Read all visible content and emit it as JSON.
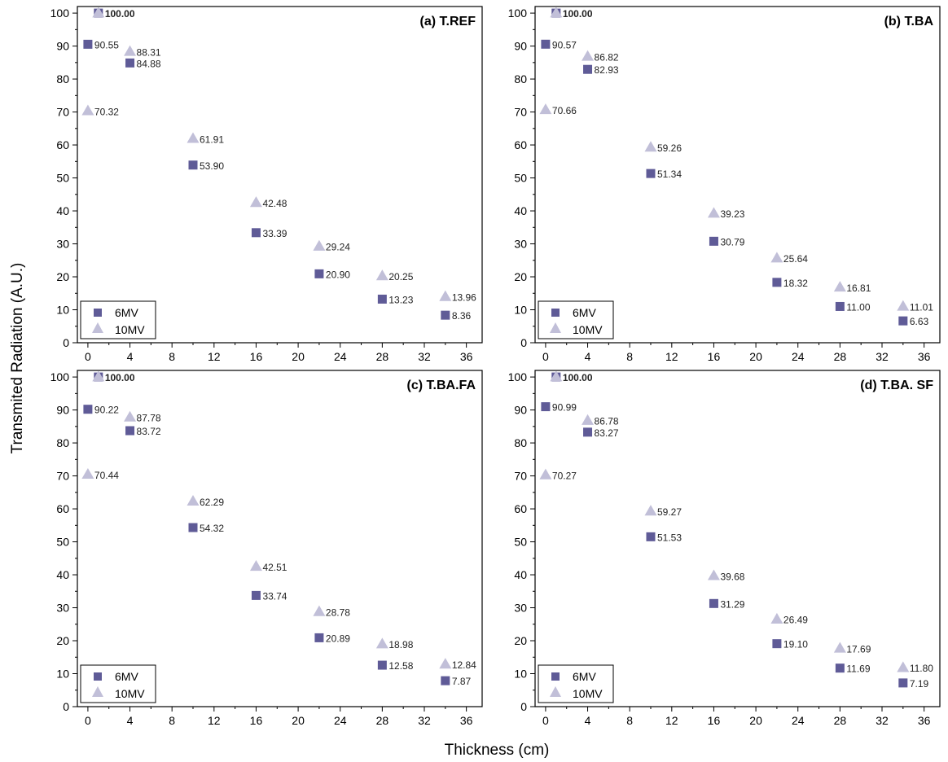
{
  "figure": {
    "xlabel": "Thickness (cm)",
    "ylabel": "Transmited Radiation (A.U.)"
  },
  "colors": {
    "6MV": "#5f5b97",
    "10MV": "#c1bfd8"
  },
  "chart_data": [
    {
      "type": "scatter",
      "title": "(a) T.REF",
      "x_ticks": [
        0,
        4,
        8,
        12,
        16,
        20,
        24,
        28,
        32,
        36
      ],
      "y_ticks": [
        0,
        10,
        20,
        30,
        40,
        50,
        60,
        70,
        80,
        90,
        100
      ],
      "xlim": [
        -1,
        37.5
      ],
      "ylim": [
        0,
        102
      ],
      "legend": "bottom-left",
      "series": [
        {
          "name": "6MV",
          "marker": "square",
          "x": [
            1,
            0,
            4,
            10,
            16,
            22,
            28,
            34
          ],
          "y": [
            100.0,
            90.55,
            84.88,
            53.9,
            33.39,
            20.9,
            13.23,
            8.36
          ],
          "labels": [
            "100.00",
            "90.55",
            "84.88",
            "53.90",
            "33.39",
            "20.90",
            "13.23",
            "8.36"
          ]
        },
        {
          "name": "10MV",
          "marker": "triangle",
          "x": [
            1,
            0,
            4,
            10,
            16,
            22,
            28,
            34
          ],
          "y": [
            100.0,
            70.32,
            88.31,
            61.91,
            42.48,
            29.24,
            20.25,
            13.96
          ],
          "labels": [
            "",
            "70.32",
            "88.31",
            "61.91",
            "42.48",
            "29.24",
            "20.25",
            "13.96"
          ]
        }
      ]
    },
    {
      "type": "scatter",
      "title": "(b) T.BA",
      "x_ticks": [
        0,
        4,
        8,
        12,
        16,
        20,
        24,
        28,
        32,
        36
      ],
      "y_ticks": [
        0,
        10,
        20,
        30,
        40,
        50,
        60,
        70,
        80,
        90,
        100
      ],
      "xlim": [
        -1,
        37.5
      ],
      "ylim": [
        0,
        102
      ],
      "legend": "bottom-left",
      "series": [
        {
          "name": "6MV",
          "marker": "square",
          "x": [
            1,
            0,
            4,
            10,
            16,
            22,
            28,
            34
          ],
          "y": [
            100.0,
            90.57,
            82.93,
            51.34,
            30.79,
            18.32,
            11.0,
            6.63
          ],
          "labels": [
            "100.00",
            "90.57",
            "82.93",
            "51.34",
            "30.79",
            "18.32",
            "11.00",
            "6.63"
          ]
        },
        {
          "name": "10MV",
          "marker": "triangle",
          "x": [
            1,
            0,
            4,
            10,
            16,
            22,
            28,
            34
          ],
          "y": [
            100.0,
            70.66,
            86.82,
            59.26,
            39.23,
            25.64,
            16.81,
            11.01
          ],
          "labels": [
            "",
            "70.66",
            "86.82",
            "59.26",
            "39.23",
            "25.64",
            "16.81",
            "11.01"
          ]
        }
      ]
    },
    {
      "type": "scatter",
      "title": "(c) T.BA.FA",
      "x_ticks": [
        0,
        4,
        8,
        12,
        16,
        20,
        24,
        28,
        32,
        36
      ],
      "y_ticks": [
        0,
        10,
        20,
        30,
        40,
        50,
        60,
        70,
        80,
        90,
        100
      ],
      "xlim": [
        -1,
        37.5
      ],
      "ylim": [
        0,
        102
      ],
      "legend": "bottom-left",
      "series": [
        {
          "name": "6MV",
          "marker": "square",
          "x": [
            1,
            0,
            4,
            10,
            16,
            22,
            28,
            34
          ],
          "y": [
            100.0,
            90.22,
            83.72,
            54.32,
            33.74,
            20.89,
            12.58,
            7.87
          ],
          "labels": [
            "100.00",
            "90.22",
            "83.72",
            "54.32",
            "33.74",
            "20.89",
            "12.58",
            "7.87"
          ]
        },
        {
          "name": "10MV",
          "marker": "triangle",
          "x": [
            1,
            0,
            4,
            10,
            16,
            22,
            28,
            34
          ],
          "y": [
            100.0,
            70.44,
            87.78,
            62.29,
            42.51,
            28.78,
            18.98,
            12.84
          ],
          "labels": [
            "",
            "70.44",
            "87.78",
            "62.29",
            "42.51",
            "28.78",
            "18.98",
            "12.84"
          ]
        }
      ]
    },
    {
      "type": "scatter",
      "title": "(d) T.BA. SF",
      "x_ticks": [
        0,
        4,
        8,
        12,
        16,
        20,
        24,
        28,
        32,
        36
      ],
      "y_ticks": [
        0,
        10,
        20,
        30,
        40,
        50,
        60,
        70,
        80,
        90,
        100
      ],
      "xlim": [
        -1,
        37.5
      ],
      "ylim": [
        0,
        102
      ],
      "legend": "bottom-left",
      "series": [
        {
          "name": "6MV",
          "marker": "square",
          "x": [
            1,
            0,
            4,
            10,
            16,
            22,
            28,
            34
          ],
          "y": [
            100.0,
            90.99,
            83.27,
            51.53,
            31.29,
            19.1,
            11.69,
            7.19
          ],
          "labels": [
            "100.00",
            "90.99",
            "83.27",
            "51.53",
            "31.29",
            "19.10",
            "11.69",
            "7.19"
          ]
        },
        {
          "name": "10MV",
          "marker": "triangle",
          "x": [
            1,
            0,
            4,
            10,
            16,
            22,
            28,
            34
          ],
          "y": [
            100.0,
            70.27,
            86.78,
            59.27,
            39.68,
            26.49,
            17.69,
            11.8
          ],
          "labels": [
            "",
            "70.27",
            "86.78",
            "59.27",
            "39.68",
            "26.49",
            "17.69",
            "11.80"
          ]
        }
      ]
    }
  ]
}
